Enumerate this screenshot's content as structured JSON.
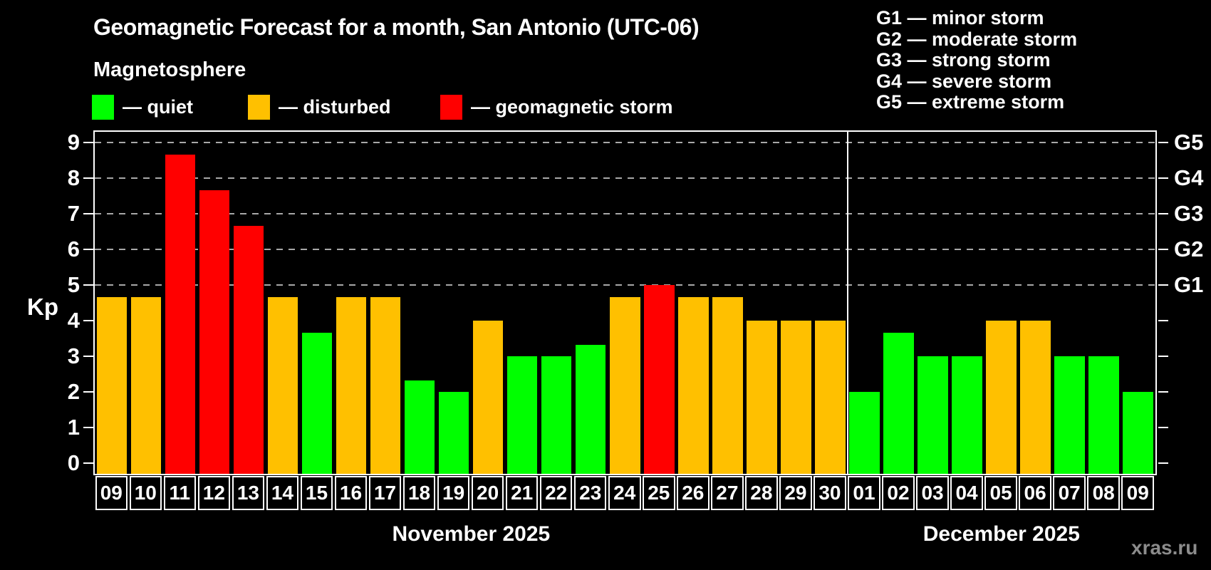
{
  "title": "Geomagnetic Forecast for a month, San Antonio (UTC-06)",
  "subtitle": "Magnetosphere",
  "legend": {
    "quiet": {
      "label": "— quiet",
      "color": "#00ff00"
    },
    "disturbed": {
      "label": "— disturbed",
      "color": "#ffc000"
    },
    "storm": {
      "label": "— geomagnetic storm",
      "color": "#ff0000"
    }
  },
  "g_scale_legend": [
    "G1 — minor storm",
    "G2 — moderate storm",
    "G3 — strong storm",
    "G4 — severe storm",
    "G5 — extreme storm"
  ],
  "watermark": "xras.ru",
  "chart_data": {
    "type": "bar",
    "title": "Geomagnetic Forecast for a month, San Antonio (UTC-06)",
    "subtitle": "Magnetosphere",
    "ylabel": "Kp",
    "ylim": [
      0,
      9.4
    ],
    "grid": "dashed horizontal lines at Kp 5-9 only",
    "gridlines_kp": [
      5,
      6,
      7,
      8,
      9
    ],
    "y_ticks_left": [
      0,
      1,
      2,
      3,
      4,
      5,
      6,
      7,
      8,
      9
    ],
    "y_ticks_right": [
      {
        "kp": 5,
        "label": "G1"
      },
      {
        "kp": 6,
        "label": "G2"
      },
      {
        "kp": 7,
        "label": "G3"
      },
      {
        "kp": 8,
        "label": "G4"
      },
      {
        "kp": 9,
        "label": "G5"
      }
    ],
    "status_colors": {
      "quiet": "#00ff00",
      "disturbed": "#ffc000",
      "storm": "#ff0000"
    },
    "months": [
      {
        "label": "November 2025",
        "days": [
          {
            "day": "09",
            "kp": 4.67,
            "status": "disturbed"
          },
          {
            "day": "10",
            "kp": 4.67,
            "status": "disturbed"
          },
          {
            "day": "11",
            "kp": 8.67,
            "status": "storm"
          },
          {
            "day": "12",
            "kp": 7.67,
            "status": "storm"
          },
          {
            "day": "13",
            "kp": 6.67,
            "status": "storm"
          },
          {
            "day": "14",
            "kp": 4.67,
            "status": "disturbed"
          },
          {
            "day": "15",
            "kp": 3.67,
            "status": "quiet"
          },
          {
            "day": "16",
            "kp": 4.67,
            "status": "disturbed"
          },
          {
            "day": "17",
            "kp": 4.67,
            "status": "disturbed"
          },
          {
            "day": "18",
            "kp": 2.33,
            "status": "quiet"
          },
          {
            "day": "19",
            "kp": 2.0,
            "status": "quiet"
          },
          {
            "day": "20",
            "kp": 4.0,
            "status": "disturbed"
          },
          {
            "day": "21",
            "kp": 3.0,
            "status": "quiet"
          },
          {
            "day": "22",
            "kp": 3.0,
            "status": "quiet"
          },
          {
            "day": "23",
            "kp": 3.33,
            "status": "quiet"
          },
          {
            "day": "24",
            "kp": 4.67,
            "status": "disturbed"
          },
          {
            "day": "25",
            "kp": 5.0,
            "status": "storm"
          },
          {
            "day": "26",
            "kp": 4.67,
            "status": "disturbed"
          },
          {
            "day": "27",
            "kp": 4.67,
            "status": "disturbed"
          },
          {
            "day": "28",
            "kp": 4.0,
            "status": "disturbed"
          },
          {
            "day": "29",
            "kp": 4.0,
            "status": "disturbed"
          },
          {
            "day": "30",
            "kp": 4.0,
            "status": "disturbed"
          }
        ]
      },
      {
        "label": "December 2025",
        "days": [
          {
            "day": "01",
            "kp": 2.0,
            "status": "quiet"
          },
          {
            "day": "02",
            "kp": 3.67,
            "status": "quiet"
          },
          {
            "day": "03",
            "kp": 3.0,
            "status": "quiet"
          },
          {
            "day": "04",
            "kp": 3.0,
            "status": "quiet"
          },
          {
            "day": "05",
            "kp": 4.0,
            "status": "disturbed"
          },
          {
            "day": "06",
            "kp": 4.0,
            "status": "disturbed"
          },
          {
            "day": "07",
            "kp": 3.0,
            "status": "quiet"
          },
          {
            "day": "08",
            "kp": 3.0,
            "status": "quiet"
          },
          {
            "day": "09",
            "kp": 2.0,
            "status": "quiet"
          }
        ]
      }
    ]
  }
}
